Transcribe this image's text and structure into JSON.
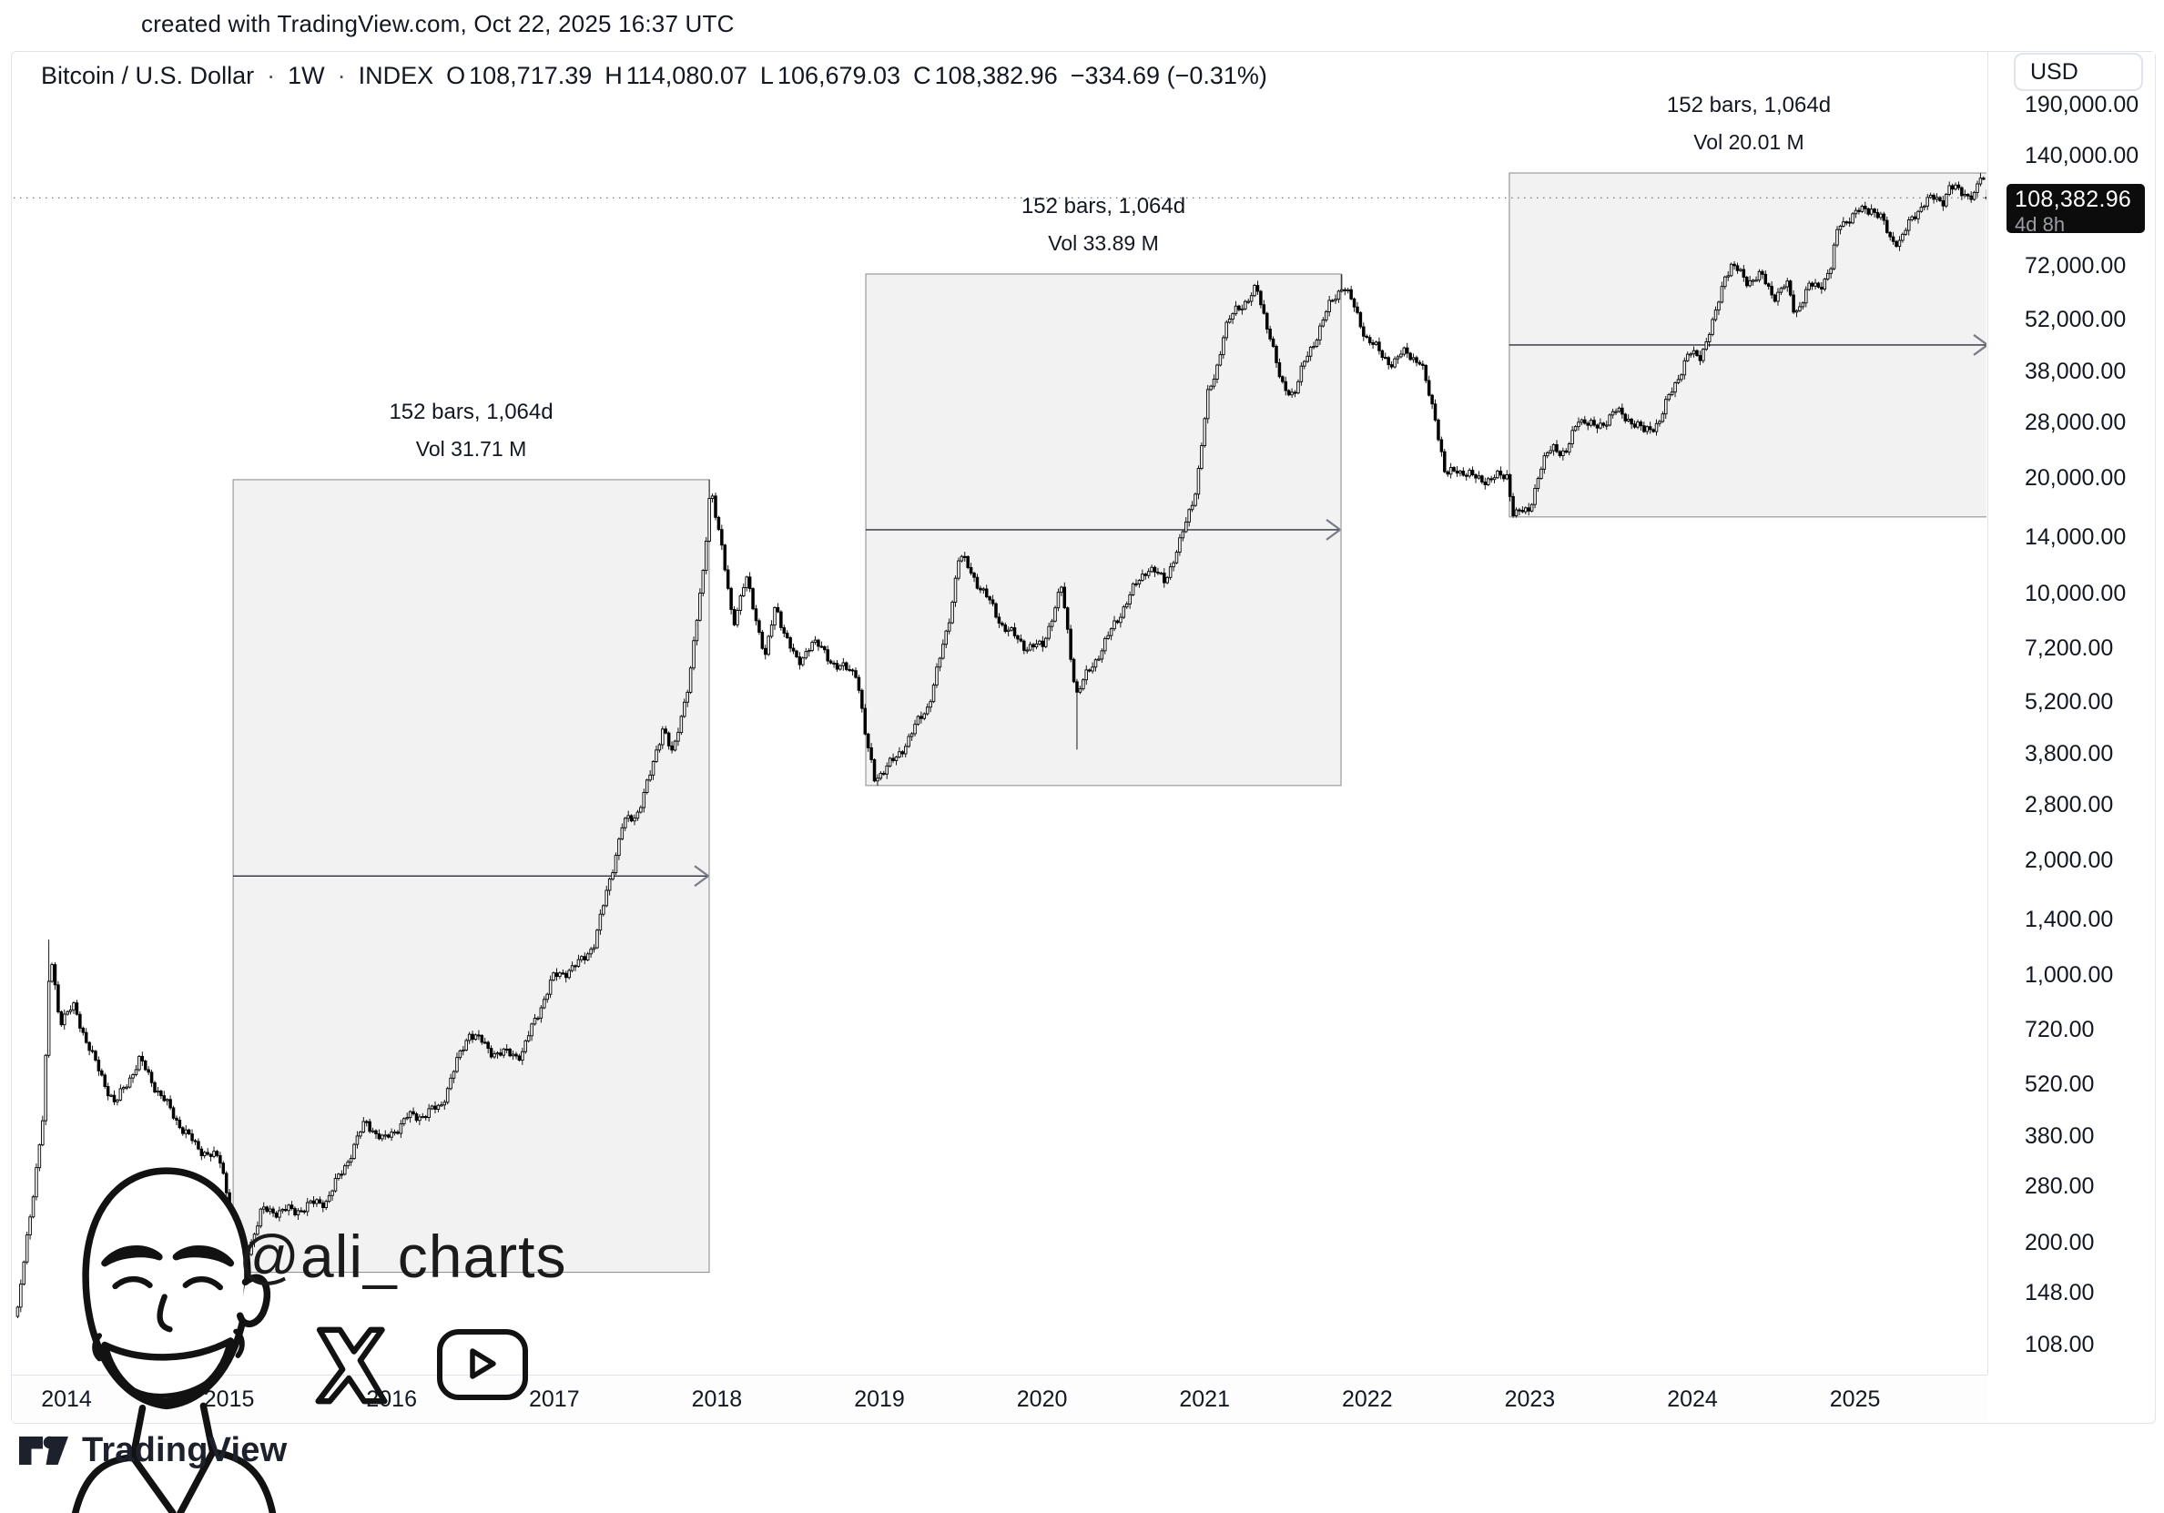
{
  "top_bar": {
    "attribution": "created with TradingView.com, Oct 22, 2025 16:37 UTC"
  },
  "header": {
    "symbol": "Bitcoin / U.S. Dollar",
    "separator": "·",
    "interval": "1W",
    "exchange": "INDEX",
    "ohlc": {
      "o_label": "O",
      "o": "108,717.39",
      "h_label": "H",
      "h": "114,080.07",
      "l_label": "L",
      "l": "106,679.03",
      "c_label": "C",
      "c": "108,382.96",
      "change": "−334.69 (−0.31%)"
    }
  },
  "price_scale": {
    "currency_button": "USD",
    "last_price_badge": {
      "price": "108,382.96",
      "countdown": "4d 8h"
    },
    "ticks": [
      {
        "label": "190,000.00",
        "value": 190000
      },
      {
        "label": "140,000.00",
        "value": 140000
      },
      {
        "label": "72,000.00",
        "value": 72000
      },
      {
        "label": "52,000.00",
        "value": 52000
      },
      {
        "label": "38,000.00",
        "value": 38000
      },
      {
        "label": "28,000.00",
        "value": 28000
      },
      {
        "label": "20,000.00",
        "value": 20000
      },
      {
        "label": "14,000.00",
        "value": 14000
      },
      {
        "label": "10,000.00",
        "value": 10000
      },
      {
        "label": "7,200.00",
        "value": 7200
      },
      {
        "label": "5,200.00",
        "value": 5200
      },
      {
        "label": "3,800.00",
        "value": 3800
      },
      {
        "label": "2,800.00",
        "value": 2800
      },
      {
        "label": "2,000.00",
        "value": 2000
      },
      {
        "label": "1,400.00",
        "value": 1400
      },
      {
        "label": "1,000.00",
        "value": 1000
      },
      {
        "label": "720.00",
        "value": 720
      },
      {
        "label": "520.00",
        "value": 520
      },
      {
        "label": "380.00",
        "value": 380
      },
      {
        "label": "280.00",
        "value": 280
      },
      {
        "label": "200.00",
        "value": 200
      },
      {
        "label": "148.00",
        "value": 148
      },
      {
        "label": "108.00",
        "value": 108
      }
    ]
  },
  "time_scale": {
    "years": [
      "2014",
      "2015",
      "2016",
      "2017",
      "2018",
      "2019",
      "2020",
      "2021",
      "2022",
      "2023",
      "2024",
      "2025"
    ]
  },
  "watermark": {
    "handle": "@ali_charts",
    "icons": [
      "x-logo",
      "youtube-logo"
    ]
  },
  "footer": {
    "brand": "TradingView"
  },
  "chart_data": {
    "type": "candlestick",
    "title": "Bitcoin / U.S. Dollar · 1W · INDEX",
    "x_axis": {
      "start_year_frac": 2013.7,
      "end_year_frac": 2025.81,
      "tick_years": [
        2014,
        2015,
        2016,
        2017,
        2018,
        2019,
        2020,
        2021,
        2022,
        2023,
        2024,
        2025
      ]
    },
    "y_axis": {
      "scale": "log",
      "currency": "USD",
      "range_top": 190000,
      "range_bottom": 108
    },
    "last": {
      "open": 108717.39,
      "high": 114080.07,
      "low": 106679.03,
      "close": 108382.96,
      "change": -334.69,
      "change_pct": -0.31,
      "countdown": "4d 8h"
    },
    "price_path": [
      {
        "t": 2013.7,
        "p": 132
      },
      {
        "t": 2013.86,
        "p": 430
      },
      {
        "t": 2013.9,
        "p": 1150
      },
      {
        "t": 2013.96,
        "p": 760
      },
      {
        "t": 2014.05,
        "p": 840
      },
      {
        "t": 2014.16,
        "p": 620
      },
      {
        "t": 2014.3,
        "p": 450
      },
      {
        "t": 2014.45,
        "p": 595
      },
      {
        "t": 2014.6,
        "p": 480
      },
      {
        "t": 2014.8,
        "p": 350
      },
      {
        "t": 2014.95,
        "p": 320
      },
      {
        "t": 2015.04,
        "p": 210
      },
      {
        "t": 2015.08,
        "p": 176
      },
      {
        "t": 2015.2,
        "p": 245
      },
      {
        "t": 2015.4,
        "p": 236
      },
      {
        "t": 2015.6,
        "p": 262
      },
      {
        "t": 2015.84,
        "p": 410
      },
      {
        "t": 2015.95,
        "p": 360
      },
      {
        "t": 2016.1,
        "p": 430
      },
      {
        "t": 2016.3,
        "p": 455
      },
      {
        "t": 2016.48,
        "p": 700
      },
      {
        "t": 2016.6,
        "p": 640
      },
      {
        "t": 2016.8,
        "p": 630
      },
      {
        "t": 2016.99,
        "p": 960
      },
      {
        "t": 2017.15,
        "p": 1080
      },
      {
        "t": 2017.25,
        "p": 1250
      },
      {
        "t": 2017.42,
        "p": 2450
      },
      {
        "t": 2017.5,
        "p": 2550
      },
      {
        "t": 2017.6,
        "p": 3400
      },
      {
        "t": 2017.67,
        "p": 4600
      },
      {
        "t": 2017.73,
        "p": 3800
      },
      {
        "t": 2017.83,
        "p": 6100
      },
      {
        "t": 2017.92,
        "p": 11500
      },
      {
        "t": 2017.96,
        "p": 19200
      },
      {
        "t": 2018.02,
        "p": 13500
      },
      {
        "t": 2018.1,
        "p": 8300
      },
      {
        "t": 2018.18,
        "p": 11000
      },
      {
        "t": 2018.3,
        "p": 7000
      },
      {
        "t": 2018.36,
        "p": 9300
      },
      {
        "t": 2018.5,
        "p": 6300
      },
      {
        "t": 2018.58,
        "p": 7400
      },
      {
        "t": 2018.75,
        "p": 6500
      },
      {
        "t": 2018.86,
        "p": 6350
      },
      {
        "t": 2018.92,
        "p": 4050
      },
      {
        "t": 2018.97,
        "p": 3250
      },
      {
        "t": 2019.1,
        "p": 3600
      },
      {
        "t": 2019.3,
        "p": 5200
      },
      {
        "t": 2019.42,
        "p": 8200
      },
      {
        "t": 2019.49,
        "p": 12500
      },
      {
        "t": 2019.6,
        "p": 10500
      },
      {
        "t": 2019.75,
        "p": 8400
      },
      {
        "t": 2019.9,
        "p": 7400
      },
      {
        "t": 2020.0,
        "p": 7200
      },
      {
        "t": 2020.12,
        "p": 10100
      },
      {
        "t": 2020.21,
        "p": 5400
      },
      {
        "t": 2020.35,
        "p": 7100
      },
      {
        "t": 2020.5,
        "p": 9200
      },
      {
        "t": 2020.65,
        "p": 11500
      },
      {
        "t": 2020.75,
        "p": 10700
      },
      {
        "t": 2020.85,
        "p": 13800
      },
      {
        "t": 2020.95,
        "p": 19500
      },
      {
        "t": 2021.02,
        "p": 33000
      },
      {
        "t": 2021.07,
        "p": 38000
      },
      {
        "t": 2021.12,
        "p": 47500
      },
      {
        "t": 2021.2,
        "p": 55000
      },
      {
        "t": 2021.28,
        "p": 59000
      },
      {
        "t": 2021.32,
        "p": 63000
      },
      {
        "t": 2021.4,
        "p": 49000
      },
      {
        "t": 2021.47,
        "p": 35500
      },
      {
        "t": 2021.55,
        "p": 33500
      },
      {
        "t": 2021.62,
        "p": 40000
      },
      {
        "t": 2021.7,
        "p": 47500
      },
      {
        "t": 2021.78,
        "p": 57500
      },
      {
        "t": 2021.85,
        "p": 65000
      },
      {
        "t": 2021.92,
        "p": 57000
      },
      {
        "t": 2022.0,
        "p": 47000
      },
      {
        "t": 2022.08,
        "p": 42500
      },
      {
        "t": 2022.16,
        "p": 39000
      },
      {
        "t": 2022.24,
        "p": 42500
      },
      {
        "t": 2022.33,
        "p": 39500
      },
      {
        "t": 2022.42,
        "p": 29500
      },
      {
        "t": 2022.48,
        "p": 20500
      },
      {
        "t": 2022.55,
        "p": 21500
      },
      {
        "t": 2022.65,
        "p": 19800
      },
      {
        "t": 2022.76,
        "p": 19400
      },
      {
        "t": 2022.86,
        "p": 20500
      },
      {
        "t": 2022.9,
        "p": 16200
      },
      {
        "t": 2022.99,
        "p": 16800
      },
      {
        "t": 2023.06,
        "p": 21000
      },
      {
        "t": 2023.14,
        "p": 24500
      },
      {
        "t": 2023.22,
        "p": 22400
      },
      {
        "t": 2023.3,
        "p": 28500
      },
      {
        "t": 2023.4,
        "p": 27000
      },
      {
        "t": 2023.52,
        "p": 30500
      },
      {
        "t": 2023.6,
        "p": 29200
      },
      {
        "t": 2023.7,
        "p": 26100
      },
      {
        "t": 2023.8,
        "p": 27600
      },
      {
        "t": 2023.88,
        "p": 34500
      },
      {
        "t": 2023.98,
        "p": 42800
      },
      {
        "t": 2024.05,
        "p": 43000
      },
      {
        "t": 2024.13,
        "p": 51500
      },
      {
        "t": 2024.2,
        "p": 68000
      },
      {
        "t": 2024.24,
        "p": 71000
      },
      {
        "t": 2024.33,
        "p": 64500
      },
      {
        "t": 2024.42,
        "p": 67500
      },
      {
        "t": 2024.5,
        "p": 61000
      },
      {
        "t": 2024.58,
        "p": 65500
      },
      {
        "t": 2024.63,
        "p": 55000
      },
      {
        "t": 2024.72,
        "p": 63000
      },
      {
        "t": 2024.78,
        "p": 62500
      },
      {
        "t": 2024.85,
        "p": 69000
      },
      {
        "t": 2024.9,
        "p": 91000
      },
      {
        "t": 2024.97,
        "p": 97000
      },
      {
        "t": 2025.04,
        "p": 102000
      },
      {
        "t": 2025.1,
        "p": 104500
      },
      {
        "t": 2025.16,
        "p": 96500
      },
      {
        "t": 2025.22,
        "p": 84500
      },
      {
        "t": 2025.28,
        "p": 82500
      },
      {
        "t": 2025.36,
        "p": 95000
      },
      {
        "t": 2025.42,
        "p": 104000
      },
      {
        "t": 2025.48,
        "p": 107500
      },
      {
        "t": 2025.54,
        "p": 108500
      },
      {
        "t": 2025.58,
        "p": 118000
      },
      {
        "t": 2025.64,
        "p": 114500
      },
      {
        "t": 2025.7,
        "p": 112000
      },
      {
        "t": 2025.74,
        "p": 110500
      },
      {
        "t": 2025.78,
        "p": 123500
      },
      {
        "t": 2025.81,
        "p": 108383
      }
    ],
    "measurements": [
      {
        "bars_label": "152 bars, 1,064d",
        "vol_label": "Vol 31.71 M",
        "t1": 2015.025,
        "t2": 2017.953,
        "p_low": 167,
        "p_high": 19830
      },
      {
        "bars_label": "152 bars, 1,064d",
        "vol_label": "Vol 33.89 M",
        "t1": 2018.916,
        "t2": 2021.839,
        "p_low": 3139,
        "p_high": 68500
      },
      {
        "bars_label": "152 bars, 1,064d",
        "vol_label": "Vol 20.01 M",
        "t1": 2022.874,
        "t2": 2025.82,
        "p_low": 15840,
        "p_high": 125900
      }
    ]
  }
}
